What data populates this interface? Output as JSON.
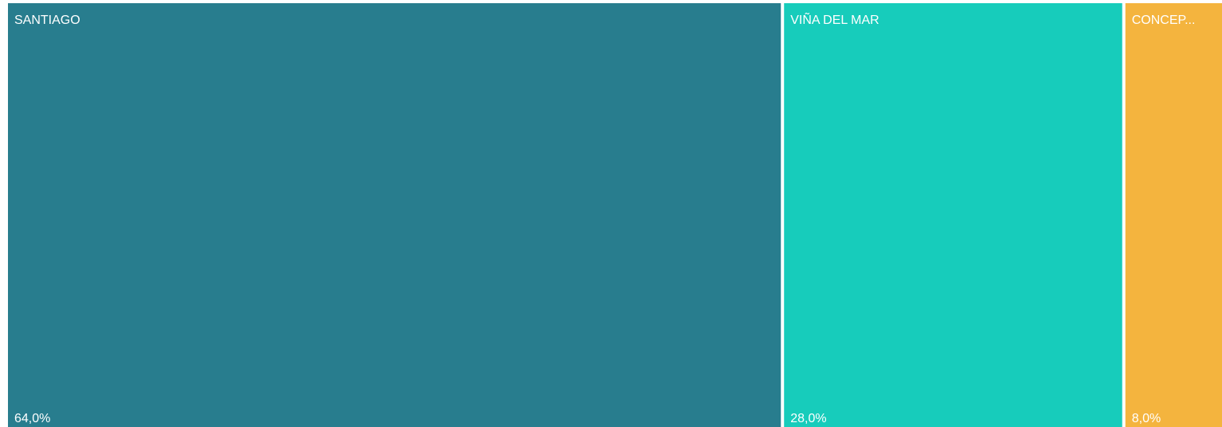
{
  "chart_data": {
    "type": "treemap",
    "categories": [
      "SANTIAGO",
      "VIÑA DEL MAR",
      "CONCEP..."
    ],
    "values": [
      64,
      28,
      8
    ],
    "value_labels": [
      "64,0%",
      "28,0%",
      "8,0%"
    ],
    "colors": [
      "#287d8e",
      "#17ccbb",
      "#f4b43e"
    ]
  }
}
